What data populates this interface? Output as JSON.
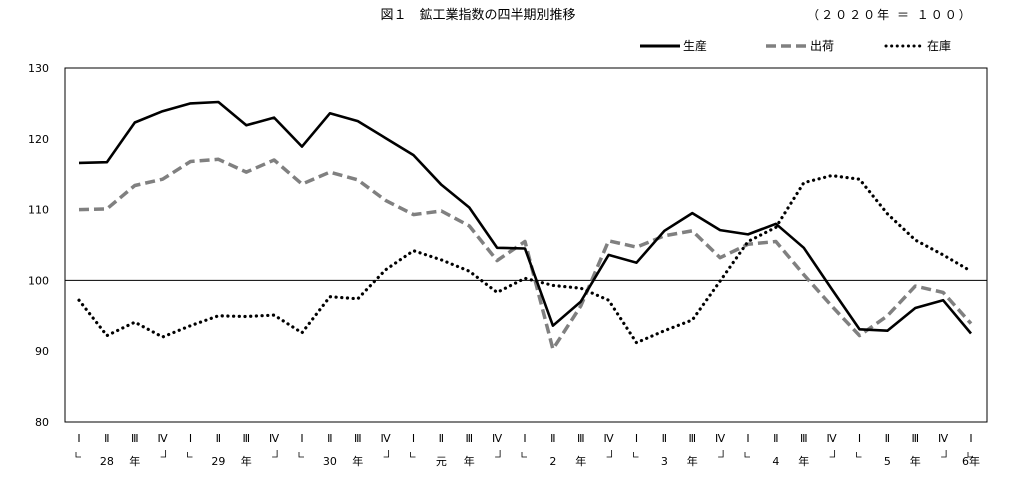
{
  "chart_data": {
    "type": "line",
    "title": "図１　鉱工業指数の四半期別推移",
    "unit_note": "（２０２０年 ＝ １００）",
    "ylim": [
      80,
      130
    ],
    "yticks": [
      80,
      90,
      100,
      110,
      120,
      130
    ],
    "reference_line": 100,
    "grid": false,
    "legend_position": "top-right",
    "x_quarter_labels": [
      "Ⅰ",
      "Ⅱ",
      "Ⅲ",
      "Ⅳ",
      "Ⅰ",
      "Ⅱ",
      "Ⅲ",
      "Ⅳ",
      "Ⅰ",
      "Ⅱ",
      "Ⅲ",
      "Ⅳ",
      "Ⅰ",
      "Ⅱ",
      "Ⅲ",
      "Ⅳ",
      "Ⅰ",
      "Ⅱ",
      "Ⅲ",
      "Ⅳ",
      "Ⅰ",
      "Ⅱ",
      "Ⅲ",
      "Ⅳ",
      "Ⅰ",
      "Ⅱ",
      "Ⅲ",
      "Ⅳ",
      "Ⅰ",
      "Ⅱ",
      "Ⅲ",
      "Ⅳ",
      "Ⅰ"
    ],
    "x_year_labels": [
      {
        "at": 1,
        "label": "28"
      },
      {
        "at": 2,
        "label": "年"
      },
      {
        "at": 5,
        "label": "29"
      },
      {
        "at": 6,
        "label": "年"
      },
      {
        "at": 9,
        "label": "30"
      },
      {
        "at": 10,
        "label": "年"
      },
      {
        "at": 13,
        "label": "元"
      },
      {
        "at": 14,
        "label": "年"
      },
      {
        "at": 17,
        "label": "2"
      },
      {
        "at": 18,
        "label": "年"
      },
      {
        "at": 21,
        "label": "3"
      },
      {
        "at": 22,
        "label": "年"
      },
      {
        "at": 25,
        "label": "4"
      },
      {
        "at": 26,
        "label": "年"
      },
      {
        "at": 29,
        "label": "5"
      },
      {
        "at": 30,
        "label": "年"
      },
      {
        "at": 32,
        "label": "6年"
      }
    ],
    "series": [
      {
        "name": "生産",
        "style": "solid",
        "color": "#000000",
        "values": [
          116.6,
          116.7,
          122.3,
          123.9,
          125.0,
          125.2,
          121.9,
          123.0,
          118.9,
          123.6,
          122.5,
          120.1,
          117.7,
          113.5,
          110.3,
          104.6,
          104.5,
          93.6,
          97.0,
          103.6,
          102.5,
          107.0,
          109.5,
          107.1,
          106.5,
          108.0,
          104.6,
          98.8,
          93.1,
          92.9,
          96.1,
          97.2,
          92.5
        ]
      },
      {
        "name": "出荷",
        "style": "dashed",
        "color": "#808080",
        "values": [
          110.0,
          110.1,
          113.4,
          114.3,
          116.8,
          117.1,
          115.3,
          117.0,
          113.6,
          115.3,
          114.2,
          111.3,
          109.3,
          109.8,
          107.7,
          102.8,
          105.5,
          90.3,
          96.4,
          105.6,
          104.7,
          106.3,
          107.0,
          103.2,
          105.1,
          105.5,
          100.8,
          96.4,
          92.2,
          95.0,
          99.2,
          98.3,
          93.9
        ]
      },
      {
        "name": "在庫",
        "style": "dotted",
        "color": "#000000",
        "values": [
          97.2,
          92.2,
          94.1,
          92.0,
          93.6,
          95.0,
          94.9,
          95.1,
          92.6,
          97.7,
          97.4,
          101.5,
          104.2,
          102.9,
          101.3,
          98.3,
          100.3,
          99.3,
          98.9,
          97.2,
          91.2,
          92.9,
          94.4,
          99.9,
          105.5,
          107.5,
          113.8,
          114.8,
          114.3,
          109.4,
          105.7,
          103.6,
          101.3
        ]
      }
    ]
  }
}
